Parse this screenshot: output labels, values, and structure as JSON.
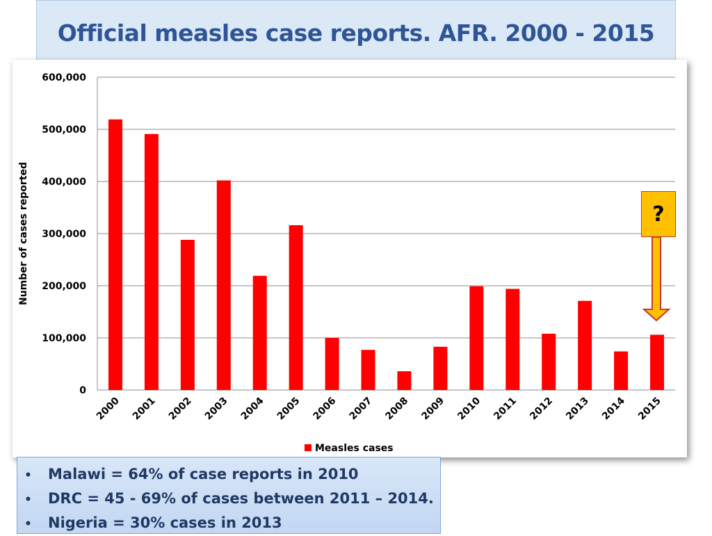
{
  "title": "Official measles case reports. AFR. 2000 - 2015",
  "chart_data": {
    "type": "bar",
    "title": "",
    "xlabel": "",
    "ylabel": "Number of cases reported",
    "ylim": [
      0,
      600000
    ],
    "yticks": [
      0,
      100000,
      200000,
      300000,
      400000,
      500000,
      600000
    ],
    "ytick_labels": [
      "0",
      "100,000",
      "200,000",
      "300,000",
      "400,000",
      "500,000",
      "600,000"
    ],
    "grid": true,
    "legend": "bottom",
    "categories": [
      "2000",
      "2001",
      "2002",
      "2003",
      "2004",
      "2005",
      "2006",
      "2007",
      "2008",
      "2009",
      "2010",
      "2011",
      "2012",
      "2013",
      "2014",
      "2015"
    ],
    "series": [
      {
        "name": "Measles cases",
        "color": "#ff0000",
        "values": [
          519000,
          491000,
          288000,
          402000,
          219000,
          316000,
          100000,
          77000,
          36000,
          83000,
          199000,
          194000,
          108000,
          171000,
          74000,
          106000
        ]
      }
    ]
  },
  "annotation": {
    "question_mark": "?",
    "box_color": "#ffc000",
    "arrow_color": "#ffc000"
  },
  "bullets": [
    "Malawi = 64% of case reports in 2010",
    "DRC  = 45 - 69% of cases between 2011 – 2014.",
    "Nigeria = 30% cases in 2013"
  ]
}
